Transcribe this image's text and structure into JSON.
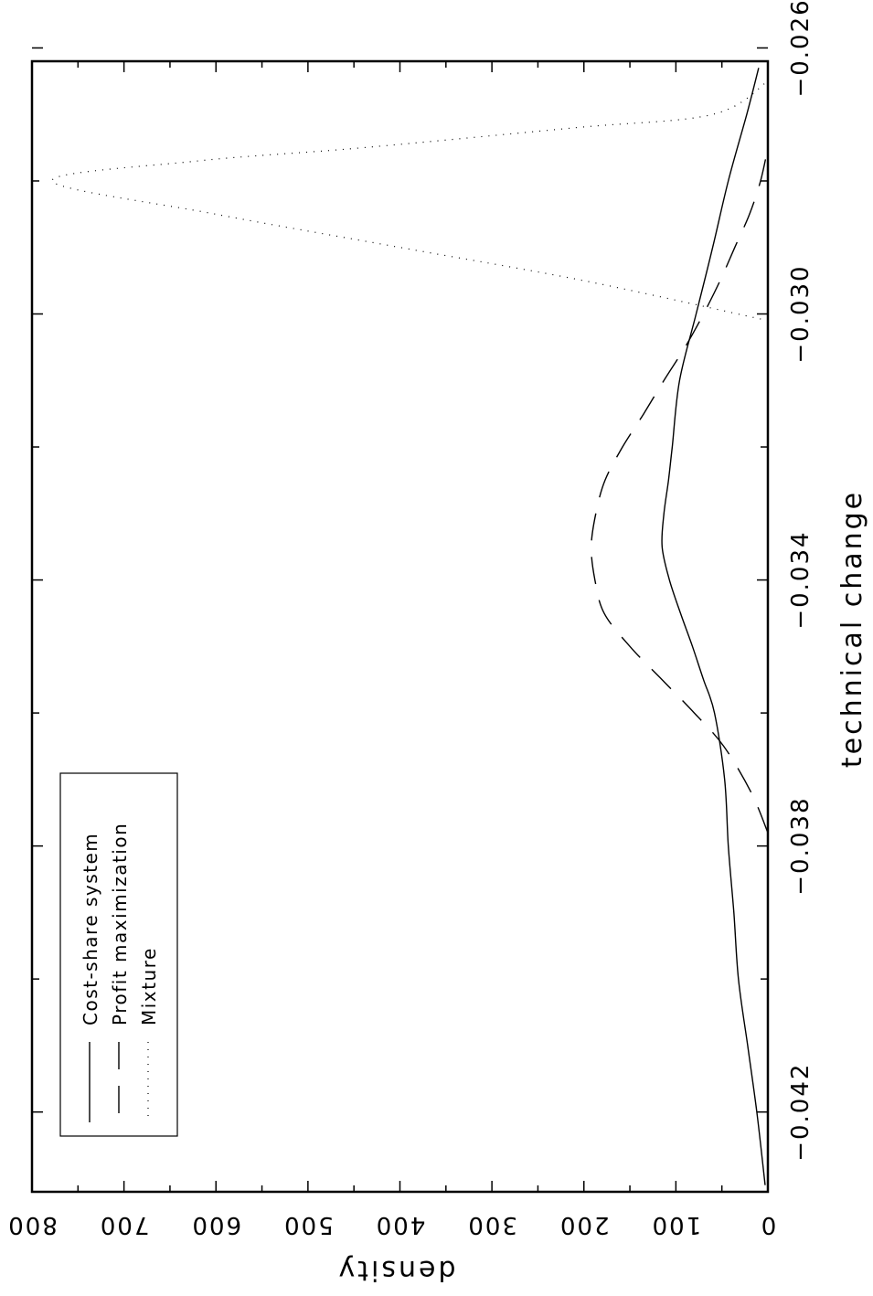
{
  "chart_data": {
    "type": "line",
    "orientation": "rotated-90-cw",
    "xlabel": "technical change",
    "ylabel": "density",
    "xlim": [
      -0.0432,
      -0.0262
    ],
    "ylim": [
      0,
      800
    ],
    "x_ticks": [
      -0.042,
      -0.038,
      -0.034,
      -0.03,
      -0.026
    ],
    "x_tick_labels": [
      "−0.042",
      "−0.038",
      "−0.034",
      "−0.030",
      "−0.026"
    ],
    "y_ticks": [
      0,
      100,
      200,
      300,
      400,
      500,
      600,
      700,
      800
    ],
    "y_tick_labels": [
      "0",
      "100",
      "200",
      "300",
      "400",
      "500",
      "600",
      "700",
      "800"
    ],
    "grid": false,
    "legend_position": "top-left",
    "series": [
      {
        "name": "Cost-share system",
        "style": "solid",
        "x": [
          -0.0431,
          -0.042,
          -0.041,
          -0.04,
          -0.039,
          -0.038,
          -0.037,
          -0.036,
          -0.0355,
          -0.035,
          -0.0345,
          -0.034,
          -0.0335,
          -0.033,
          -0.0325,
          -0.032,
          -0.031,
          -0.03,
          -0.029,
          -0.028,
          -0.027,
          -0.0263
        ],
        "values": [
          3,
          12,
          22,
          32,
          37,
          43,
          47,
          58,
          70,
          82,
          95,
          107,
          115,
          113,
          108,
          104,
          96,
          78,
          60,
          43,
          23,
          10
        ]
      },
      {
        "name": "Profit maximization",
        "style": "dashed",
        "x": [
          -0.0378,
          -0.0372,
          -0.0365,
          -0.036,
          -0.0355,
          -0.035,
          -0.0345,
          -0.034,
          -0.0335,
          -0.033,
          -0.0325,
          -0.032,
          -0.0315,
          -0.031,
          -0.0305,
          -0.03,
          -0.0295,
          -0.029,
          -0.0285,
          -0.028,
          -0.0275
        ],
        "values": [
          0,
          18,
          48,
          80,
          115,
          150,
          178,
          188,
          192,
          187,
          177,
          158,
          135,
          113,
          90,
          70,
          52,
          36,
          20,
          8,
          0
        ]
      },
      {
        "name": "Mixture",
        "style": "dotted",
        "x": [
          -0.0301,
          -0.0295,
          -0.029,
          -0.0285,
          -0.028,
          -0.0277,
          -0.0275,
          -0.0272,
          -0.027,
          -0.0265
        ],
        "values": [
          0,
          200,
          400,
          600,
          778,
          620,
          440,
          210,
          60,
          0
        ]
      }
    ]
  }
}
